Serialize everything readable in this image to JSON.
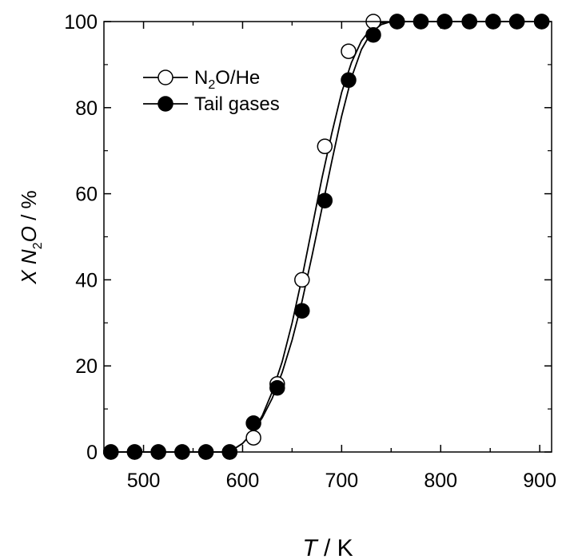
{
  "chart_data": {
    "type": "line",
    "title": "",
    "xlabel": {
      "italic": "T",
      "rest": " / K"
    },
    "ylabel": {
      "plain1": "X ",
      "italic": "N",
      "sub": "2",
      "italic2": "O",
      "rest": " / %"
    },
    "xlim": [
      460,
      912
    ],
    "ylim": [
      0,
      100
    ],
    "xticks": [
      500,
      600,
      700,
      800,
      900
    ],
    "yticks": [
      0,
      20,
      40,
      60,
      80,
      100
    ],
    "grid": false,
    "legend_position": "top-left",
    "series": [
      {
        "name": {
          "pre": "N",
          "sub": "2",
          "post": "O/He"
        },
        "marker": "open-circle",
        "x": [
          467,
          491,
          515,
          539,
          563,
          587,
          611,
          635,
          660,
          683,
          707,
          732,
          756,
          780,
          804,
          829,
          853,
          877,
          902
        ],
        "y": [
          0,
          0,
          0,
          0,
          0,
          0,
          3.3,
          15.8,
          40.0,
          71.0,
          93.1,
          100,
          100,
          100,
          100,
          100,
          100,
          100,
          100
        ],
        "curve_x": [
          467,
          580,
          590,
          600,
          610,
          620,
          630,
          640,
          650,
          660,
          670,
          680,
          690,
          700,
          710,
          720,
          730,
          740,
          750,
          760,
          902
        ],
        "curve_y": [
          0,
          0,
          0.5,
          2.0,
          4.5,
          8.5,
          14.0,
          21.0,
          30.0,
          40.5,
          52.0,
          63.5,
          74.0,
          83.5,
          90.5,
          95.5,
          98.5,
          99.7,
          100,
          100,
          100
        ]
      },
      {
        "name": {
          "pre": "Tail gases",
          "sub": "",
          "post": ""
        },
        "marker": "filled-circle",
        "x": [
          467,
          491,
          515,
          539,
          563,
          587,
          611,
          635,
          660,
          683,
          707,
          732,
          756,
          780,
          804,
          829,
          853,
          877,
          902
        ],
        "y": [
          0,
          0,
          0,
          0,
          0,
          0,
          6.7,
          14.9,
          32.8,
          58.4,
          86.4,
          96.9,
          100,
          100,
          100,
          100,
          100,
          100,
          100
        ],
        "curve_x": [
          467,
          580,
          590,
          600,
          610,
          620,
          630,
          640,
          650,
          660,
          670,
          680,
          690,
          700,
          710,
          720,
          730,
          740,
          750,
          760,
          902
        ],
        "curve_y": [
          0,
          0,
          0.5,
          2.0,
          4.5,
          8.0,
          12.5,
          18.5,
          26.0,
          35.0,
          45.5,
          56.5,
          67.5,
          78.0,
          87.0,
          93.5,
          97.5,
          99.3,
          100,
          100,
          100
        ]
      }
    ]
  }
}
